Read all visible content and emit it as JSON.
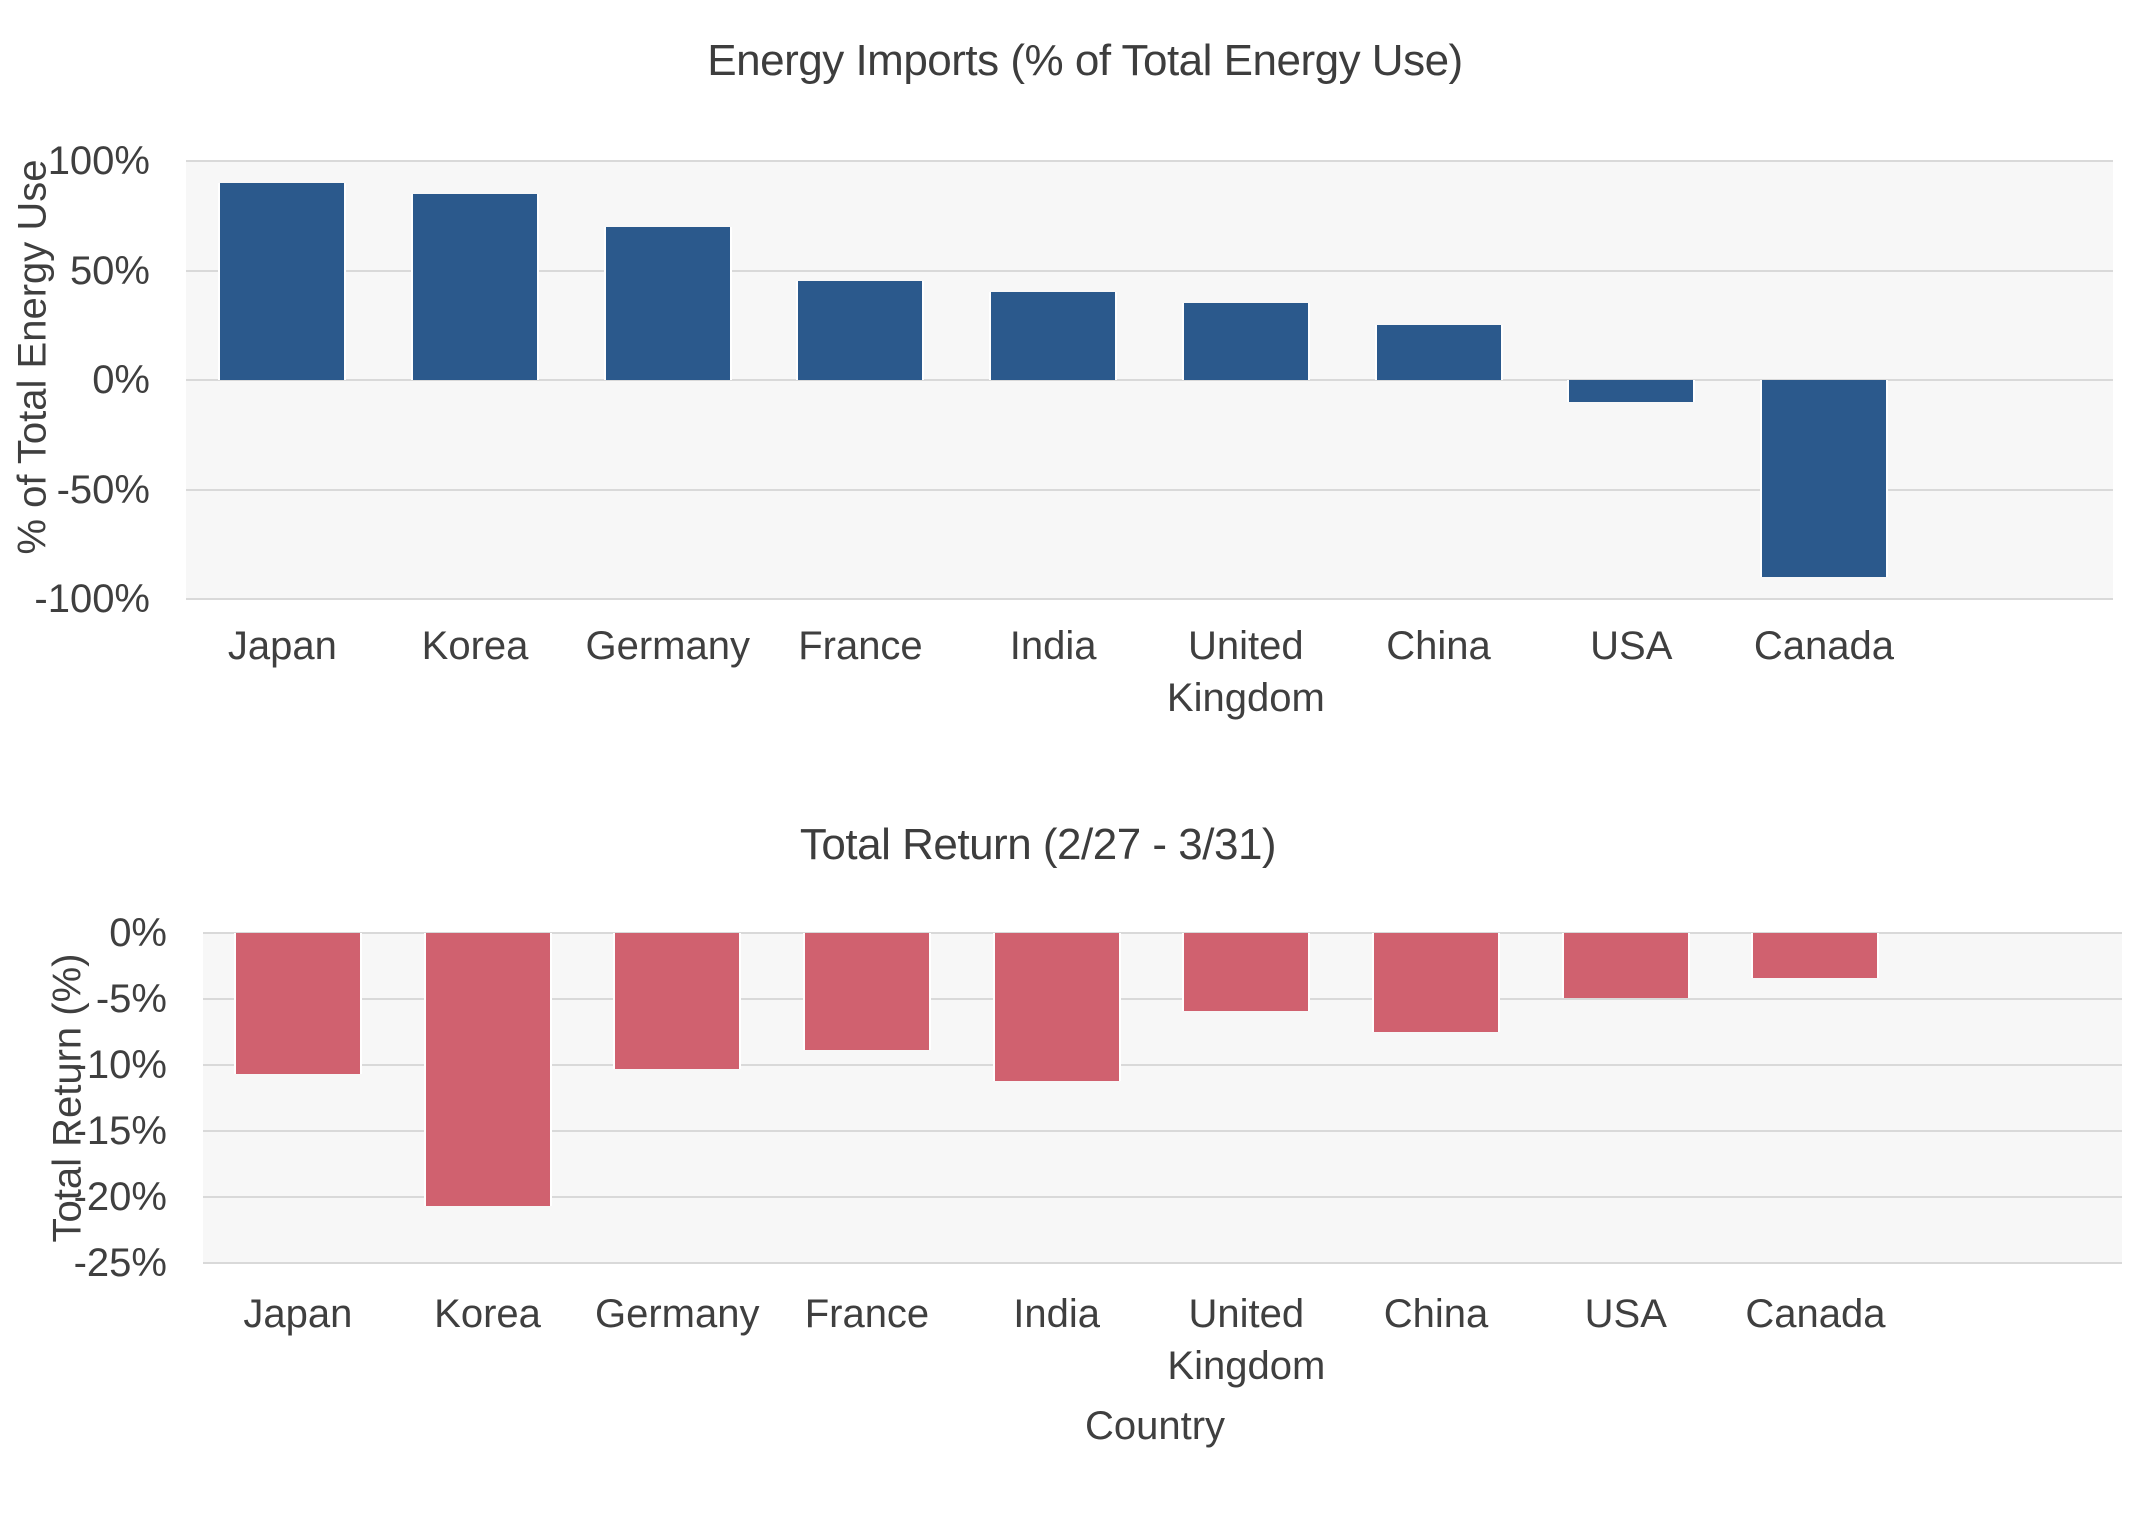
{
  "figure": {
    "background_color": "#ffffff",
    "plot_background_color": "#f7f7f7",
    "gridline_color": "#d9d9d9",
    "text_color": "#3f3f3f"
  },
  "chart_data": [
    {
      "type": "bar",
      "title": "Energy Imports (% of Total Energy Use)",
      "categories": [
        "Japan",
        "Korea",
        "Germany",
        "France",
        "India",
        "United Kingdom",
        "China",
        "USA",
        "Canada"
      ],
      "values": [
        90,
        85,
        70,
        45,
        40,
        35,
        25,
        -10,
        -90
      ],
      "xlabel": "",
      "ylabel": "% of Total Energy Use",
      "ylim": [
        -100,
        100
      ],
      "yticks": [
        100,
        50,
        0,
        -50,
        -100
      ],
      "ytick_labels": [
        "100%",
        "50%",
        "0%",
        "-50%",
        "-100%"
      ],
      "bar_color": "#2B598C",
      "grid": true,
      "legend": "none"
    },
    {
      "type": "bar",
      "title": "Total Return (2/27 - 3/31)",
      "categories": [
        "Japan",
        "Korea",
        "Germany",
        "France",
        "India",
        "United Kingdom",
        "China",
        "USA",
        "Canada"
      ],
      "values": [
        -10.7,
        -20.7,
        -10.3,
        -8.9,
        -11.2,
        -5.9,
        -7.5,
        -4.9,
        -3.4
      ],
      "xlabel": "Country",
      "ylabel": "Total Return (%)",
      "ylim": [
        -25,
        0
      ],
      "yticks": [
        0,
        -5,
        -10,
        -15,
        -20,
        -25
      ],
      "ytick_labels": [
        "0%",
        "-5%",
        "-10%",
        "-15%",
        "-20%",
        "-25%"
      ],
      "bar_color": "#D0616F",
      "grid": true,
      "legend": "none"
    }
  ]
}
